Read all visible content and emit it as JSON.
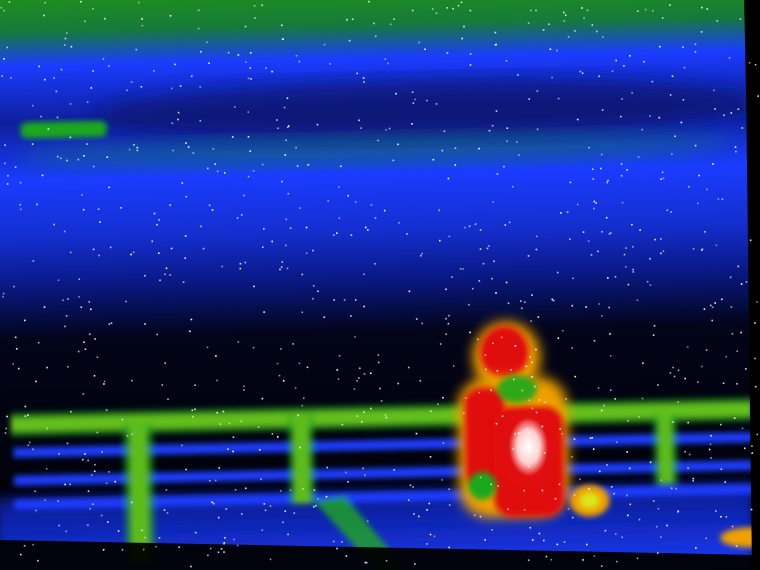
{
  "image": {
    "kind": "thermal-camera-frame",
    "palette": [
      "#000000",
      "#0a1a8a",
      "#1a3cff",
      "#1fa81f",
      "#d8e81a",
      "#f0a000",
      "#e01010",
      "#ffffff"
    ],
    "subjects": [
      "person-figure",
      "railing",
      "hot-spot"
    ]
  }
}
